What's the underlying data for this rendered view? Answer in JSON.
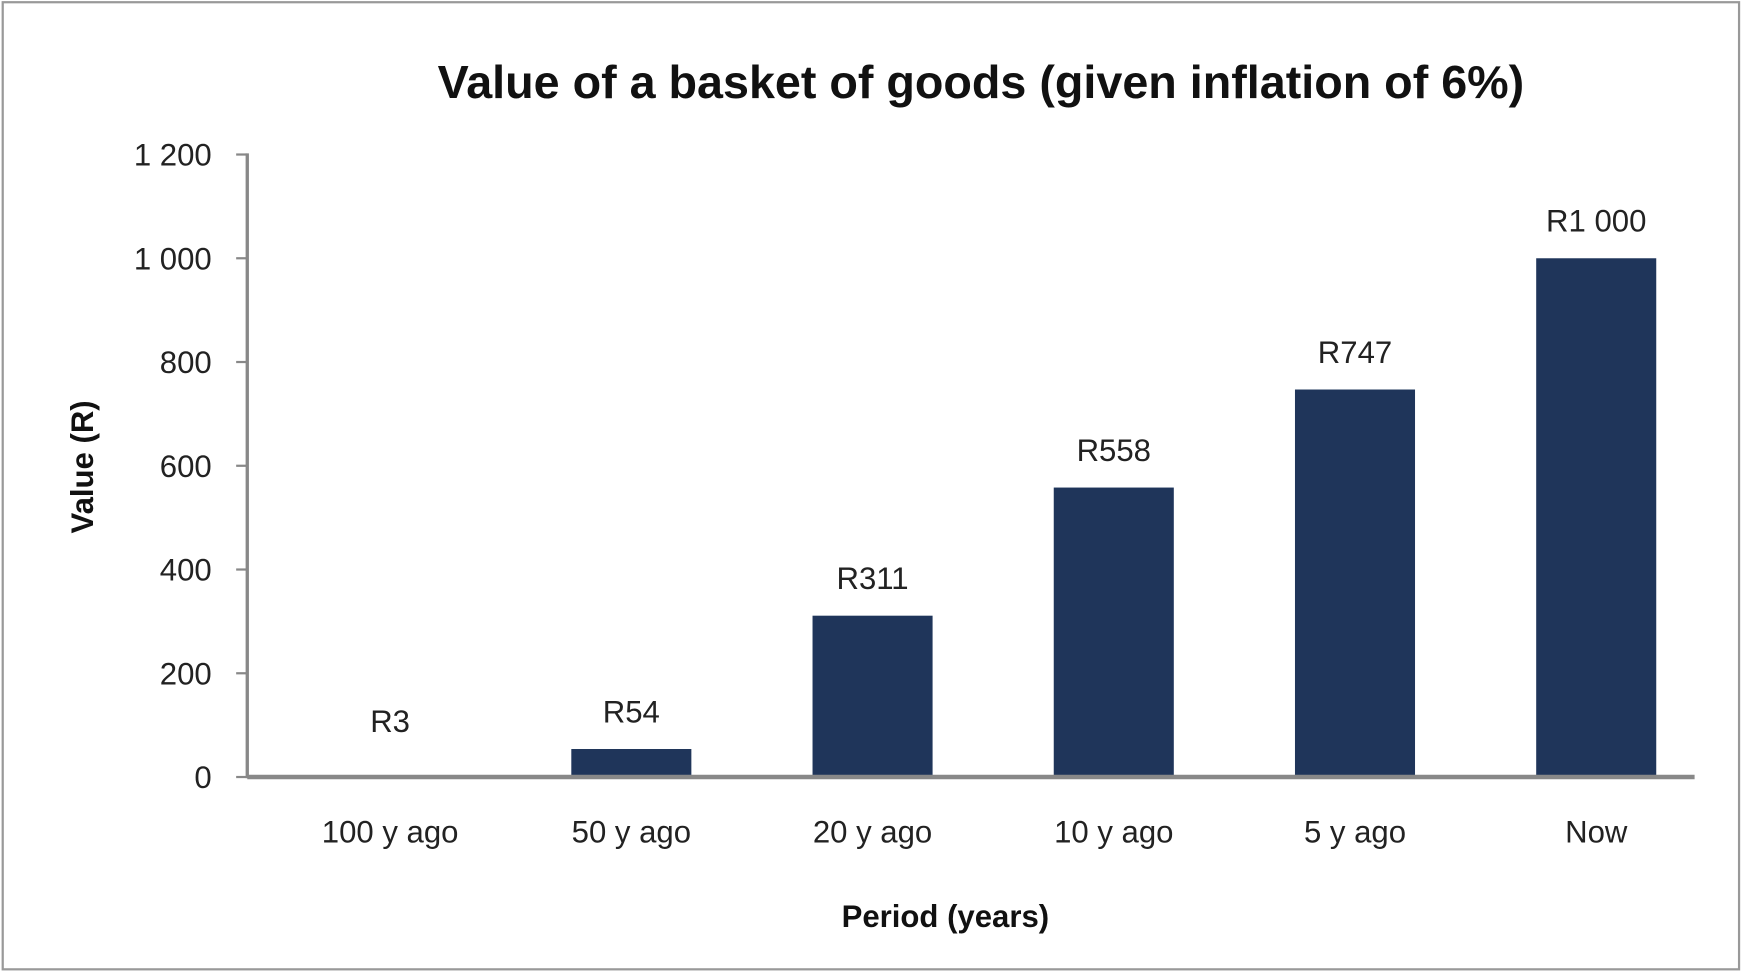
{
  "chart_data": {
    "type": "bar",
    "title": "Value of a basket of goods (given inflation of 6%)",
    "xlabel": "Period (years)",
    "ylabel": "Value (R)",
    "categories": [
      "100 y ago",
      "50 y ago",
      "20 y ago",
      "10 y ago",
      "5 y ago",
      "Now"
    ],
    "values": [
      3,
      54,
      311,
      558,
      747,
      1000
    ],
    "data_labels": [
      "R3",
      "R54",
      "R311",
      "R558",
      "R747",
      "R1 000"
    ],
    "ylim": [
      0,
      1200
    ],
    "yticks": [
      0,
      200,
      400,
      600,
      800,
      1000,
      1200
    ],
    "ytick_labels": [
      "0",
      "200",
      "400",
      "600",
      "800",
      "1 000",
      "1 200"
    ],
    "grid": false,
    "legend": "none",
    "bar_color": "#1f355a"
  }
}
